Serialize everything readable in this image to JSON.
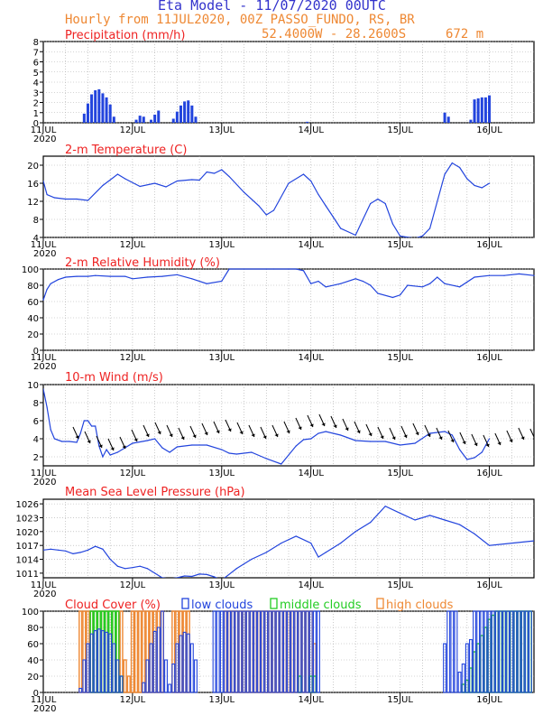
{
  "header": {
    "title": "Eta Model - 11/07/2020 00UTC",
    "line2": "Hourly from 11JUL2020, 00Z  PASSO_FUNDO, RS, BR",
    "coords": "52.4000W - 28.2600S",
    "elevation": "672  m"
  },
  "colors": {
    "title": "#3333cc",
    "orange": "#ee8833",
    "red": "#ee2222",
    "blue": "#2244dd",
    "green": "#22cc22"
  },
  "x_axis": {
    "labels": [
      "11JUL",
      "12JUL",
      "13JUL",
      "14JUL",
      "15JUL",
      "16JUL"
    ],
    "year": "2020",
    "hours": 132
  },
  "chart_data": [
    {
      "type": "bar",
      "name": "precip",
      "title": "Precipitation (mm/h)",
      "ylim": [
        0,
        8
      ],
      "ticks": [
        0,
        1,
        2,
        3,
        4,
        5,
        6,
        7,
        8
      ],
      "x": [
        11,
        12,
        13,
        14,
        15,
        16,
        17,
        18,
        19,
        25,
        26,
        27,
        29,
        30,
        31,
        35,
        36,
        37,
        38,
        39,
        40,
        41,
        71,
        108,
        109,
        115,
        116,
        117,
        118,
        119,
        120
      ],
      "values": [
        0.9,
        1.9,
        2.8,
        3.2,
        3.3,
        2.9,
        2.5,
        1.8,
        0.6,
        0.3,
        0.7,
        0.6,
        0.3,
        0.8,
        1.2,
        0.4,
        1.1,
        1.7,
        2.1,
        2.2,
        1.7,
        0.6,
        0.1,
        1.0,
        0.6,
        0.3,
        2.3,
        2.4,
        2.5,
        2.5,
        2.7
      ]
    },
    {
      "type": "line",
      "name": "temp",
      "title": "2-m Temperature (C)",
      "ylim": [
        4,
        22
      ],
      "ticks": [
        4,
        8,
        12,
        16,
        20
      ],
      "x": [
        0,
        1,
        3,
        6,
        9,
        12,
        16,
        20,
        22,
        26,
        30,
        33,
        36,
        40,
        42,
        44,
        46,
        48,
        50,
        54,
        58,
        60,
        62,
        66,
        70,
        72,
        74,
        76,
        78,
        80,
        84,
        86,
        88,
        90,
        92,
        94,
        96,
        100,
        102,
        104,
        108,
        110,
        112,
        114,
        116,
        118,
        120
      ],
      "values": [
        16.5,
        13.5,
        12.8,
        12.5,
        12.5,
        12.2,
        15.5,
        18.0,
        17.0,
        15.3,
        16.0,
        15.2,
        16.5,
        16.8,
        16.7,
        18.5,
        18.2,
        19.0,
        17.5,
        14.0,
        11.0,
        9.0,
        10.0,
        16.0,
        18.0,
        16.5,
        13.5,
        11.0,
        8.5,
        6.0,
        4.5,
        8.0,
        11.5,
        12.5,
        11.5,
        7.0,
        4.3,
        3.8,
        4.3,
        6.0,
        18.0,
        20.5,
        19.5,
        17.0,
        15.5,
        15.0,
        16.0
      ]
    },
    {
      "type": "line",
      "name": "rh",
      "title": "2-m Relative Humidity (%)",
      "ylim": [
        0,
        100
      ],
      "ticks": [
        0,
        20,
        40,
        60,
        80,
        100
      ],
      "x": [
        0,
        1,
        2,
        4,
        6,
        9,
        12,
        14,
        18,
        22,
        24,
        28,
        32,
        36,
        40,
        44,
        48,
        50,
        54,
        60,
        62,
        66,
        68,
        70,
        72,
        74,
        76,
        80,
        84,
        86,
        88,
        90,
        94,
        96,
        98,
        102,
        104,
        106,
        108,
        112,
        116,
        120,
        124,
        128,
        132
      ],
      "values": [
        62,
        75,
        82,
        87,
        90,
        91,
        91,
        92,
        91,
        91,
        88,
        90,
        91,
        93,
        88,
        82,
        85,
        100,
        100,
        100,
        100,
        100,
        100,
        98,
        82,
        85,
        78,
        82,
        88,
        85,
        80,
        70,
        65,
        68,
        80,
        78,
        82,
        90,
        82,
        78,
        90,
        92,
        92,
        94,
        92
      ]
    },
    {
      "type": "line",
      "name": "wind",
      "title": "10-m Wind (m/s)",
      "ylim": [
        1,
        10
      ],
      "ticks": [
        2,
        4,
        6,
        8,
        10
      ],
      "x": [
        0,
        1,
        2,
        3,
        5,
        7,
        9,
        10,
        11,
        12,
        13,
        14,
        15,
        16,
        17,
        18,
        20,
        24,
        28,
        30,
        32,
        34,
        36,
        40,
        44,
        48,
        50,
        52,
        56,
        60,
        64,
        68,
        70,
        72,
        74,
        76,
        80,
        84,
        88,
        92,
        96,
        100,
        104,
        108,
        110,
        112,
        114,
        116,
        118,
        120
      ],
      "values": [
        9.5,
        7.5,
        5.0,
        4.0,
        3.7,
        3.7,
        3.6,
        4.6,
        6.0,
        6.0,
        5.4,
        5.4,
        3.2,
        2.0,
        2.8,
        2.2,
        2.5,
        3.5,
        3.8,
        4.0,
        3.0,
        2.5,
        3.1,
        3.3,
        3.3,
        2.8,
        2.4,
        2.3,
        2.5,
        1.8,
        1.2,
        3.2,
        3.9,
        4.0,
        4.6,
        4.8,
        4.4,
        3.8,
        3.7,
        3.7,
        3.3,
        3.5,
        4.6,
        4.8,
        4.4,
        2.8,
        1.7,
        1.9,
        2.5,
        4.0
      ]
    },
    {
      "type": "line",
      "name": "pressure",
      "title": "Mean Sea Level Pressure (hPa)",
      "ylim": [
        1010,
        1027
      ],
      "ticks": [
        1011,
        1014,
        1017,
        1020,
        1023,
        1026
      ],
      "x": [
        0,
        2,
        4,
        6,
        8,
        10,
        12,
        14,
        16,
        18,
        20,
        22,
        24,
        26,
        28,
        30,
        32,
        34,
        36,
        38,
        40,
        42,
        44,
        46,
        48,
        52,
        56,
        60,
        64,
        68,
        72,
        74,
        76,
        80,
        84,
        88,
        92,
        96,
        100,
        104,
        108,
        112,
        116,
        120,
        132
      ],
      "values": [
        1016.0,
        1016.2,
        1016.0,
        1015.8,
        1015.2,
        1015.5,
        1016.0,
        1016.8,
        1016.2,
        1014.0,
        1012.5,
        1012.0,
        1012.2,
        1012.5,
        1012.0,
        1011.0,
        1010.0,
        1009.8,
        1010.0,
        1010.4,
        1010.3,
        1010.8,
        1010.7,
        1010.2,
        1009.5,
        1012.0,
        1014.0,
        1015.5,
        1017.5,
        1019.0,
        1017.5,
        1014.5,
        1015.5,
        1017.5,
        1020.0,
        1022.0,
        1025.5,
        1024.0,
        1022.5,
        1023.5,
        1022.5,
        1021.5,
        1019.5,
        1017.0,
        1018.0
      ]
    },
    {
      "type": "bar",
      "name": "clouds",
      "title": "Cloud Cover (%)",
      "ylim": [
        0,
        100
      ],
      "ticks": [
        0,
        20,
        40,
        60,
        80,
        100
      ],
      "legend": [
        "low clouds",
        "middle clouds",
        "high clouds"
      ],
      "categories_hours": [
        10,
        11,
        12,
        13,
        14,
        15,
        16,
        17,
        18,
        19,
        20,
        21,
        22,
        23,
        24,
        25,
        26,
        27,
        28,
        29,
        30,
        31,
        32,
        33,
        34,
        35,
        36,
        37,
        38,
        39,
        40,
        41,
        42,
        43,
        44,
        45,
        46,
        47,
        48,
        49,
        50,
        51,
        52,
        53,
        54,
        55,
        56,
        57,
        58,
        59,
        60,
        61,
        62,
        63,
        64,
        65,
        66,
        67,
        68,
        69,
        70,
        71,
        72,
        73,
        74,
        108,
        109,
        110,
        111,
        112,
        113,
        114,
        115,
        116,
        117,
        118,
        119,
        120,
        121,
        122,
        123,
        124,
        125,
        126,
        127,
        128,
        129,
        130,
        131
      ],
      "series": [
        {
          "name": "low clouds",
          "values": [
            5,
            40,
            60,
            72,
            76,
            78,
            76,
            74,
            72,
            60,
            40,
            20,
            0,
            0,
            0,
            0,
            0,
            12,
            40,
            60,
            75,
            80,
            100,
            40,
            10,
            35,
            60,
            70,
            74,
            72,
            60,
            40,
            0,
            0,
            0,
            0,
            100,
            100,
            100,
            100,
            100,
            100,
            100,
            100,
            100,
            100,
            100,
            100,
            100,
            100,
            100,
            100,
            100,
            100,
            100,
            100,
            100,
            100,
            100,
            100,
            100,
            100,
            100,
            100,
            100,
            60,
            100,
            100,
            100,
            25,
            35,
            60,
            65,
            100,
            100,
            100,
            100,
            100,
            100,
            100,
            100,
            100,
            100,
            100,
            100,
            100,
            100,
            100,
            100
          ]
        },
        {
          "name": "middle clouds",
          "values": [
            0,
            0,
            0,
            100,
            100,
            100,
            100,
            100,
            100,
            100,
            100,
            20,
            0,
            0,
            0,
            0,
            0,
            0,
            0,
            0,
            0,
            0,
            0,
            0,
            0,
            0,
            0,
            0,
            0,
            0,
            0,
            0,
            0,
            0,
            0,
            0,
            0,
            0,
            0,
            0,
            0,
            0,
            0,
            0,
            0,
            0,
            0,
            0,
            0,
            0,
            0,
            0,
            0,
            0,
            0,
            0,
            0,
            0,
            0,
            20,
            0,
            0,
            20,
            20,
            0,
            0,
            0,
            0,
            0,
            0,
            10,
            15,
            30,
            50,
            60,
            70,
            80,
            90,
            95,
            100,
            100,
            100,
            100,
            100,
            100,
            100,
            100,
            100,
            100
          ]
        },
        {
          "name": "high clouds",
          "values": [
            100,
            100,
            100,
            100,
            100,
            100,
            100,
            100,
            100,
            100,
            100,
            100,
            40,
            20,
            100,
            100,
            100,
            100,
            100,
            100,
            100,
            100,
            100,
            0,
            0,
            100,
            100,
            100,
            100,
            100,
            0,
            0,
            0,
            0,
            0,
            0,
            0,
            0,
            0,
            100,
            100,
            100,
            100,
            100,
            100,
            100,
            100,
            100,
            100,
            100,
            100,
            100,
            100,
            100,
            100,
            100,
            100,
            100,
            100,
            100,
            100,
            100,
            100,
            60,
            0,
            0,
            0,
            0,
            0,
            0,
            0,
            0,
            0,
            0,
            0,
            0,
            0,
            0,
            0,
            0,
            0,
            0,
            0,
            0,
            0,
            0,
            0,
            0,
            0
          ]
        }
      ]
    }
  ],
  "wind_arrows": {
    "hours_start": 8,
    "hours_end": 131,
    "y": [
      5.3,
      4.8,
      4.3,
      4.0,
      4.2,
      5.0,
      5.5,
      5.8,
      5.5,
      5.2,
      5.4,
      5.7,
      5.9,
      6.1,
      5.8,
      5.5,
      5.3,
      5.5,
      5.9,
      6.3,
      6.6,
      6.7,
      6.5,
      6.2,
      5.9,
      5.6,
      5.3,
      5.2,
      5.4,
      5.7,
      5.5,
      5.2,
      4.9,
      4.7,
      4.5,
      4.4,
      4.6,
      4.9,
      5.2,
      5.1
    ]
  }
}
